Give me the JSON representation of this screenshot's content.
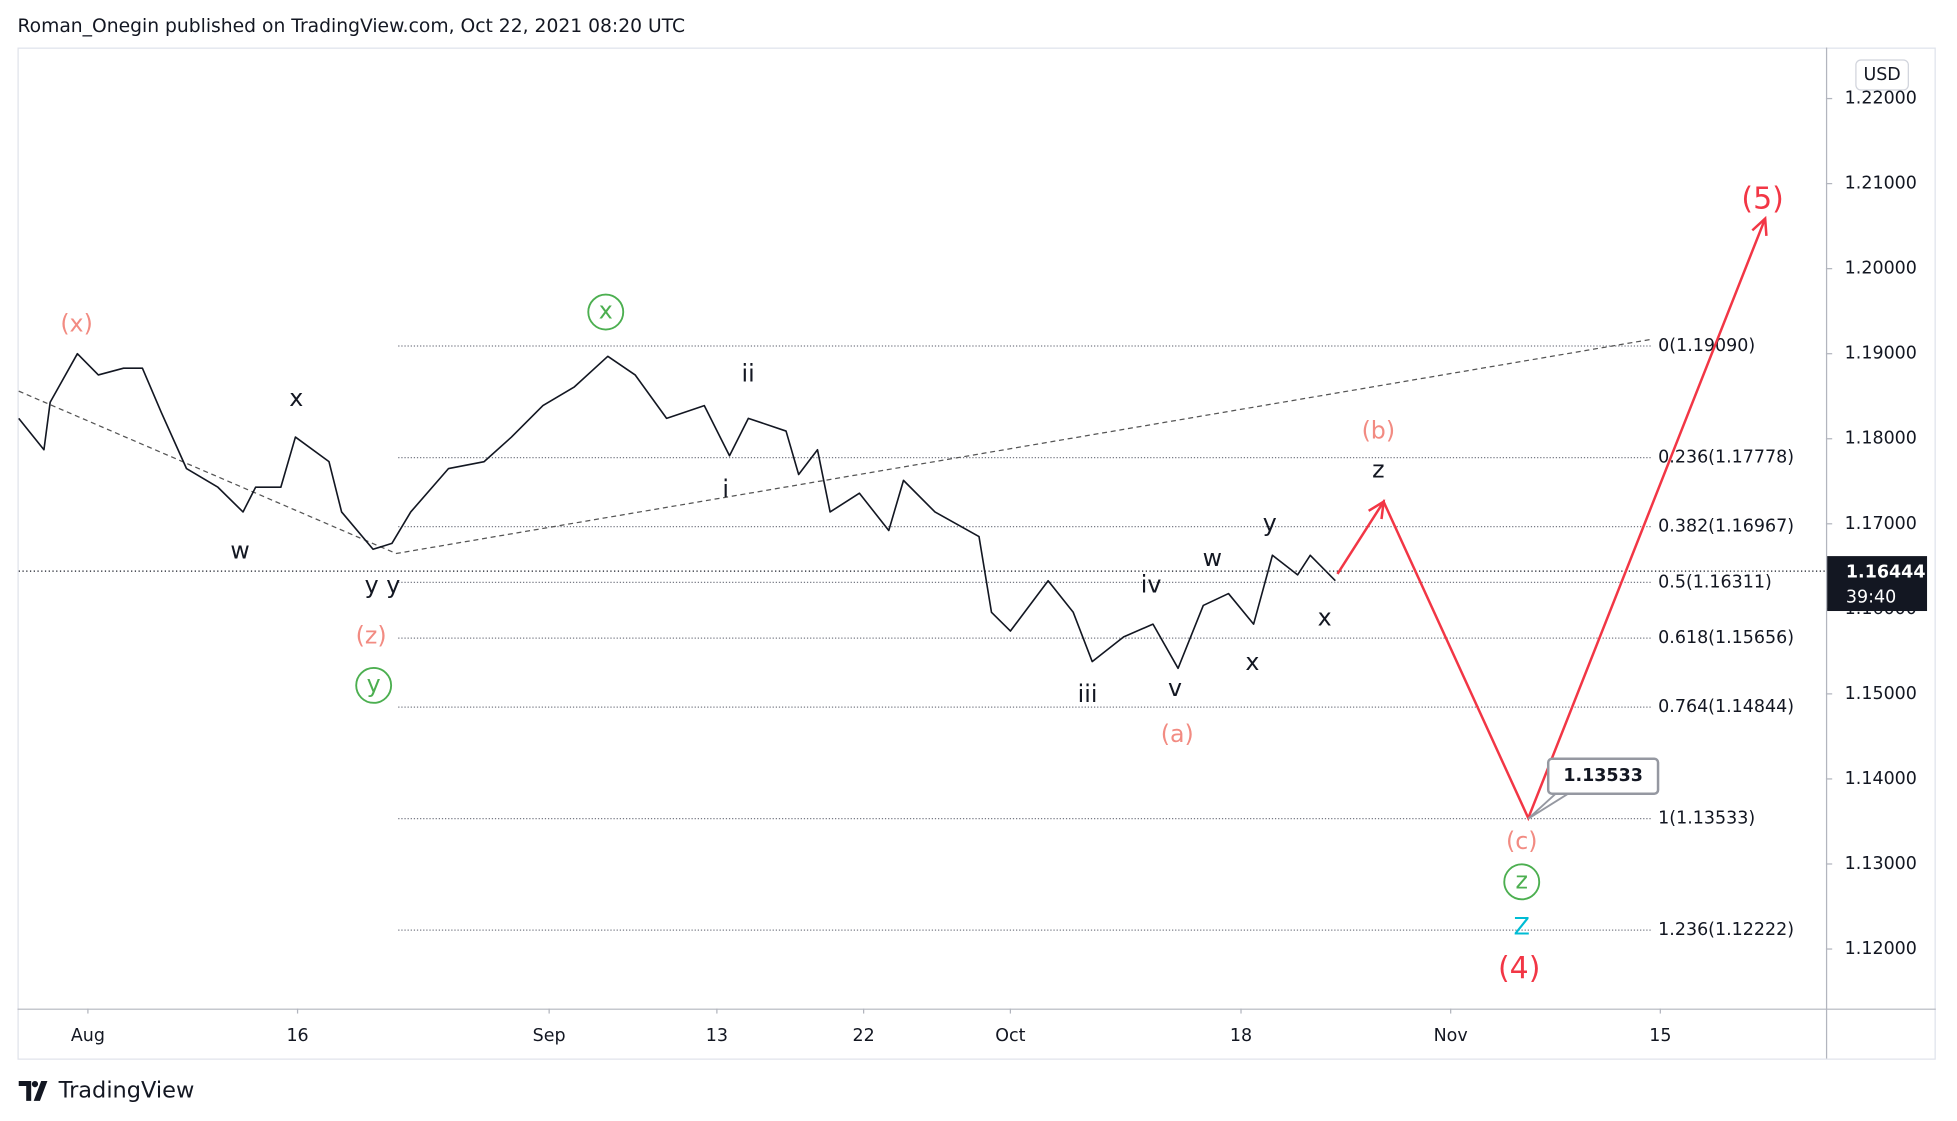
{
  "header": "Roman_Onegin published on TradingView.com, Oct 22, 2021 08:20 UTC",
  "footer": "TradingView",
  "chart_data": {
    "type": "line",
    "currency": "USD",
    "xlim": [
      -3.3,
      82.9
    ],
    "ylim": [
      1.113,
      1.226
    ],
    "xticks": [
      {
        "value": 0,
        "label": "Aug"
      },
      {
        "value": 10,
        "label": "16"
      },
      {
        "value": 22,
        "label": "Sep"
      },
      {
        "value": 30,
        "label": "13"
      },
      {
        "value": 37,
        "label": "22"
      },
      {
        "value": 44,
        "label": "Oct"
      },
      {
        "value": 55,
        "label": "18"
      },
      {
        "value": 65,
        "label": "Nov"
      },
      {
        "value": 75,
        "label": "15"
      }
    ],
    "yticks": [
      {
        "value": 1.12,
        "label": "1.12000"
      },
      {
        "value": 1.13,
        "label": "1.13000"
      },
      {
        "value": 1.14,
        "label": "1.14000"
      },
      {
        "value": 1.15,
        "label": "1.15000"
      },
      {
        "value": 1.16,
        "label": "1.16000"
      },
      {
        "value": 1.17,
        "label": "1.17000"
      },
      {
        "value": 1.18,
        "label": "1.18000"
      },
      {
        "value": 1.19,
        "label": "1.19000"
      },
      {
        "value": 1.2,
        "label": "1.20000"
      },
      {
        "value": 1.21,
        "label": "1.21000"
      },
      {
        "value": 1.22,
        "label": "1.22000"
      }
    ],
    "price": {
      "color": "#131722",
      "x": [
        -3.3,
        -2.1,
        -1.8,
        -0.5,
        0.5,
        1.7,
        2.6,
        3.5,
        4.7,
        6.2,
        7.4,
        8.0,
        9.2,
        9.9,
        11.5,
        12.1,
        13.6,
        14.5,
        15.4,
        17.2,
        18.9,
        20.2,
        21.7,
        23.2,
        24.8,
        26.1,
        27.6,
        29.4,
        30.6,
        31.5,
        33.3,
        33.9,
        34.8,
        35.4,
        36.8,
        38.2,
        38.9,
        40.4,
        42.5,
        43.1,
        44.0,
        45.8,
        47.0,
        47.9,
        49.4,
        50.8,
        52.0,
        53.2,
        54.4,
        55.6,
        56.5,
        57.7,
        58.3,
        59.5
      ],
      "values": [
        1.1824,
        1.1787,
        1.1843,
        1.19,
        1.1875,
        1.1883,
        1.1883,
        1.1831,
        1.1765,
        1.1743,
        1.1714,
        1.1743,
        1.1743,
        1.1802,
        1.1773,
        1.1714,
        1.167,
        1.1677,
        1.1714,
        1.1765,
        1.1773,
        1.1802,
        1.1839,
        1.1861,
        1.1897,
        1.1875,
        1.1824,
        1.1839,
        1.178,
        1.1824,
        1.1809,
        1.1758,
        1.1787,
        1.1714,
        1.1736,
        1.1692,
        1.1751,
        1.1714,
        1.1685,
        1.1596,
        1.1574,
        1.1633,
        1.1596,
        1.1538,
        1.1567,
        1.1582,
        1.153,
        1.1604,
        1.1618,
        1.1582,
        1.1663,
        1.164,
        1.1663,
        1.1633
      ]
    },
    "projection": {
      "color": "#f23645",
      "x": [
        59.6,
        61.8,
        68.7,
        80.0
      ],
      "values": [
        1.1641,
        1.1726,
        1.1354,
        1.2059
      ]
    },
    "trendline": {
      "color": "#555555",
      "x": [
        -3.3,
        14.7,
        74.6
      ],
      "values": [
        1.1856,
        1.1665,
        1.1917
      ]
    },
    "fib_range": [
      14.8,
      74.6
    ],
    "fib_levels": [
      {
        "value": 1.1909,
        "label": "0(1.19090)"
      },
      {
        "value": 1.17778,
        "label": "0.236(1.17778)"
      },
      {
        "value": 1.16967,
        "label": "0.382(1.16967)"
      },
      {
        "value": 1.16311,
        "label": "0.5(1.16311)"
      },
      {
        "value": 1.15656,
        "label": "0.618(1.15656)"
      },
      {
        "value": 1.14844,
        "label": "0.764(1.14844)"
      },
      {
        "value": 1.13533,
        "label": "1(1.13533)"
      },
      {
        "value": 1.12222,
        "label": "1.236(1.12222)"
      }
    ],
    "last_price": {
      "value": 1.16444,
      "label": "1.16444"
    },
    "countdown": "39:40",
    "target": {
      "x": 68.7,
      "value": 1.13533,
      "label": "1.13533"
    },
    "annotations": [
      {
        "text": "(x)",
        "x": -0.54,
        "y": 1.1934,
        "color": "#f28b82"
      },
      {
        "text": "x",
        "x": 9.94,
        "y": 1.1846,
        "color": "#131722"
      },
      {
        "text": "w",
        "x": 7.26,
        "y": 1.1667,
        "color": "#131722"
      },
      {
        "text": "y y",
        "x": 14.05,
        "y": 1.1626,
        "color": "#131722"
      },
      {
        "text": "(z)",
        "x": 13.51,
        "y": 1.1567,
        "color": "#f28b82"
      },
      {
        "text": "y",
        "x": 13.63,
        "y": 1.151,
        "color": "#4caf50",
        "circle": true
      },
      {
        "text": "x",
        "x": 24.7,
        "y": 1.1949,
        "color": "#4caf50",
        "circle": true
      },
      {
        "text": "ii",
        "x": 31.49,
        "y": 1.1875,
        "color": "#131722"
      },
      {
        "text": "i",
        "x": 30.42,
        "y": 1.1739,
        "color": "#131722"
      },
      {
        "text": "iii",
        "x": 47.68,
        "y": 1.1498,
        "color": "#131722"
      },
      {
        "text": "iv",
        "x": 50.71,
        "y": 1.1627,
        "color": "#131722"
      },
      {
        "text": "v",
        "x": 51.85,
        "y": 1.1505,
        "color": "#131722"
      },
      {
        "text": "(a)",
        "x": 51.96,
        "y": 1.1451,
        "color": "#f28b82"
      },
      {
        "text": "w",
        "x": 53.63,
        "y": 1.1658,
        "color": "#131722"
      },
      {
        "text": "x",
        "x": 55.54,
        "y": 1.1536,
        "color": "#131722"
      },
      {
        "text": "y",
        "x": 56.37,
        "y": 1.1699,
        "color": "#131722"
      },
      {
        "text": "x",
        "x": 58.99,
        "y": 1.1588,
        "color": "#131722"
      },
      {
        "text": "z",
        "x": 61.55,
        "y": 1.1762,
        "color": "#131722"
      },
      {
        "text": "(b)",
        "x": 61.55,
        "y": 1.1808,
        "color": "#f28b82"
      },
      {
        "text": "(c)",
        "x": 68.39,
        "y": 1.1325,
        "color": "#f28b82"
      },
      {
        "text": "z",
        "x": 68.39,
        "y": 1.1279,
        "color": "#4caf50",
        "circle": true
      },
      {
        "text": "Z",
        "x": 68.39,
        "y": 1.1225,
        "color": "#00bcd4"
      },
      {
        "text": "(4)",
        "x": 68.27,
        "y": 1.1176,
        "color": "#f23645"
      },
      {
        "text": "(5)",
        "x": 79.88,
        "y": 1.2081,
        "color": "#f23645"
      }
    ]
  }
}
